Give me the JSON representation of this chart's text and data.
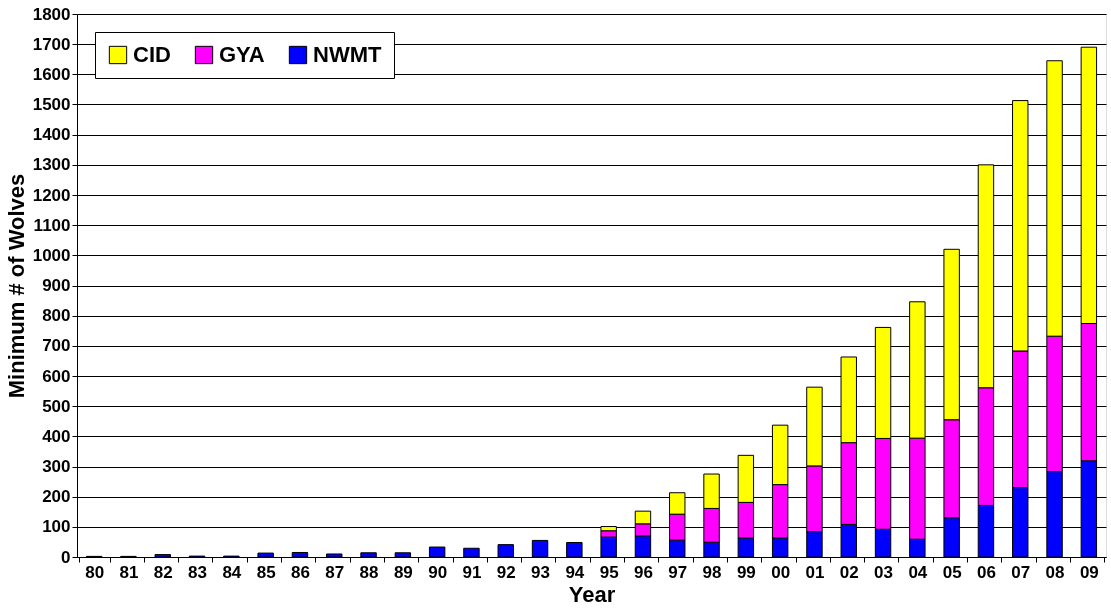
{
  "chart_data": {
    "type": "bar",
    "stacked": true,
    "xlabel": "Year",
    "ylabel": "Minimum # of Wolves",
    "categories": [
      "80",
      "81",
      "82",
      "83",
      "84",
      "85",
      "86",
      "87",
      "88",
      "89",
      "90",
      "91",
      "92",
      "93",
      "94",
      "95",
      "96",
      "97",
      "98",
      "99",
      "00",
      "01",
      "02",
      "03",
      "04",
      "05",
      "06",
      "07",
      "08",
      "09"
    ],
    "series": [
      {
        "name": "NWMT",
        "color": "#0000ff",
        "values": [
          2,
          2,
          8,
          3,
          3,
          13,
          15,
          10,
          14,
          14,
          33,
          29,
          41,
          55,
          48,
          66,
          70,
          56,
          49,
          63,
          63,
          84,
          108,
          92,
          59,
          130,
          171,
          230,
          283,
          319
        ]
      },
      {
        "name": "GYA",
        "color": "#ff00ff",
        "values": [
          null,
          null,
          null,
          null,
          null,
          null,
          null,
          null,
          null,
          null,
          null,
          null,
          null,
          null,
          null,
          21,
          40,
          86,
          112,
          118,
          177,
          218,
          271,
          301,
          335,
          325,
          390,
          453,
          449,
          455
        ]
      },
      {
        "name": "CID",
        "color": "#ffff00",
        "values": [
          null,
          null,
          null,
          null,
          null,
          null,
          null,
          null,
          null,
          null,
          null,
          null,
          null,
          null,
          null,
          14,
          42,
          71,
          114,
          156,
          197,
          261,
          284,
          368,
          452,
          565,
          739,
          830,
          913,
          916
        ]
      }
    ],
    "ylim": [
      0,
      1800
    ],
    "yticks": [
      0,
      100,
      200,
      300,
      400,
      500,
      600,
      700,
      800,
      900,
      1000,
      1100,
      1200,
      1300,
      1400,
      1500,
      1600,
      1700,
      1800
    ],
    "grid": "y",
    "legend": "top left"
  }
}
